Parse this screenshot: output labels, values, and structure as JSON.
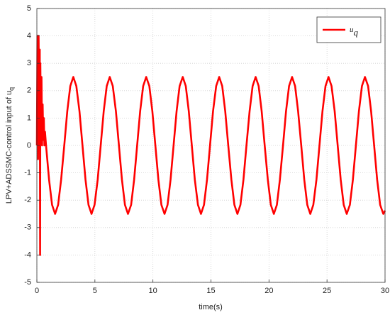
{
  "chart_data": {
    "type": "line",
    "xlabel": "time(s)",
    "ylabel": "LPV+ADSSMC-control input of u",
    "ylabel_subscript": "q",
    "x": [
      0,
      0.05,
      0.1,
      0.15,
      0.2,
      0.25,
      0.28,
      0.3,
      0.35,
      0.4,
      0.45,
      0.5,
      0.55,
      0.6,
      0.65,
      0.7,
      0.79,
      1.05,
      1.31,
      1.57,
      1.83,
      2.09,
      2.36,
      2.62,
      2.88,
      3.14,
      3.4,
      3.67,
      3.93,
      4.19,
      4.45,
      4.71,
      4.97,
      5.24,
      5.5,
      5.76,
      6.02,
      6.28,
      6.54,
      6.81,
      7.07,
      7.33,
      7.59,
      7.85,
      8.12,
      8.38,
      8.64,
      8.9,
      9.16,
      9.42,
      9.69,
      9.95,
      10.21,
      10.47,
      10.73,
      11.0,
      11.26,
      11.52,
      11.78,
      12.04,
      12.3,
      12.57,
      12.83,
      13.09,
      13.35,
      13.61,
      13.88,
      14.14,
      14.4,
      14.66,
      14.92,
      15.18,
      15.45,
      15.71,
      15.97,
      16.23,
      16.49,
      16.76,
      17.02,
      17.28,
      17.54,
      17.8,
      18.06,
      18.33,
      18.59,
      18.85,
      19.11,
      19.37,
      19.63,
      19.9,
      20.16,
      20.42,
      20.68,
      20.94,
      21.21,
      21.47,
      21.73,
      21.99,
      22.25,
      22.51,
      22.78,
      23.04,
      23.3,
      23.56,
      23.82,
      24.09,
      24.35,
      24.61,
      24.87,
      25.13,
      25.39,
      25.66,
      25.92,
      26.18,
      26.44,
      26.7,
      26.97,
      27.23,
      27.49,
      27.75,
      28.01,
      28.27,
      28.54,
      28.8,
      29.06,
      29.32,
      29.58,
      29.85,
      30
    ],
    "series": [
      {
        "name": "u",
        "name_subscript": "q",
        "color": "#ff0000",
        "values": [
          0,
          4,
          -0.5,
          4,
          1,
          3.5,
          -4,
          3,
          0.5,
          2.5,
          0,
          1.5,
          0.2,
          1,
          0,
          0.5,
          0,
          -1.25,
          -2.17,
          -2.5,
          -2.17,
          -1.25,
          0,
          1.25,
          2.17,
          2.5,
          2.17,
          1.25,
          0,
          -1.25,
          -2.17,
          -2.5,
          -2.17,
          -1.25,
          0,
          1.25,
          2.17,
          2.5,
          2.17,
          1.25,
          0,
          -1.25,
          -2.17,
          -2.5,
          -2.17,
          -1.25,
          0,
          1.25,
          2.17,
          2.5,
          2.17,
          1.25,
          0,
          -1.25,
          -2.17,
          -2.5,
          -2.17,
          -1.25,
          0,
          1.25,
          2.17,
          2.5,
          2.17,
          1.25,
          0,
          -1.25,
          -2.17,
          -2.5,
          -2.17,
          -1.25,
          0,
          1.25,
          2.17,
          2.5,
          2.17,
          1.25,
          0,
          -1.25,
          -2.17,
          -2.5,
          -2.17,
          -1.25,
          0,
          1.25,
          2.17,
          2.5,
          2.17,
          1.25,
          0,
          -1.25,
          -2.17,
          -2.5,
          -2.17,
          -1.25,
          0,
          1.25,
          2.17,
          2.5,
          2.17,
          1.25,
          0,
          -1.25,
          -2.17,
          -2.5,
          -2.17,
          -1.25,
          0,
          1.25,
          2.17,
          2.5,
          2.17,
          1.25,
          0,
          -1.25,
          -2.17,
          -2.5,
          -2.17,
          -1.25,
          0,
          1.25,
          2.17,
          2.5,
          2.17,
          1.25,
          0,
          -1.25,
          -2.17,
          -2.5,
          -2.38
        ]
      }
    ],
    "xlim": [
      0,
      30
    ],
    "xticks": [
      0,
      5,
      10,
      15,
      20,
      25,
      30
    ],
    "ylim": [
      -5,
      5
    ],
    "yticks": [
      -5,
      -4,
      -3,
      -2,
      -1,
      0,
      1,
      2,
      3,
      4,
      5
    ],
    "grid": true,
    "legend": "upper right"
  }
}
